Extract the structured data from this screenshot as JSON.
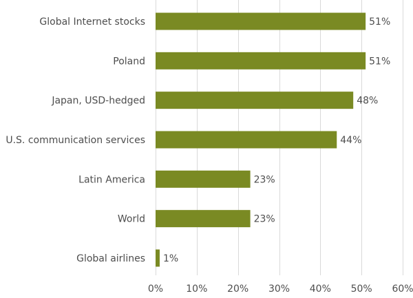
{
  "chart_data": {
    "type": "bar",
    "orientation": "horizontal",
    "title": "",
    "xlabel": "",
    "ylabel": "",
    "categories": [
      "Global Internet stocks",
      "Poland",
      "Japan, USD-hedged",
      "U.S. communication services",
      "Latin America",
      "World",
      "Global airlines"
    ],
    "values": [
      51,
      51,
      48,
      44,
      23,
      23,
      1
    ],
    "value_labels": [
      "51%",
      "51%",
      "48%",
      "44%",
      "23%",
      "23%",
      "1%"
    ],
    "x_ticks": [
      0,
      10,
      20,
      30,
      40,
      50,
      60
    ],
    "x_tick_labels": [
      "0%",
      "10%",
      "20%",
      "30%",
      "40%",
      "50%",
      "60%"
    ],
    "xlim": [
      0,
      60
    ],
    "grid": "vertical",
    "legend": "none",
    "bar_color": "#7a8a23"
  }
}
